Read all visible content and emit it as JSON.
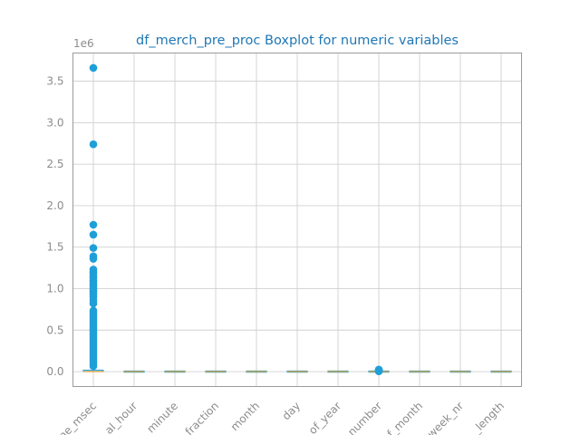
{
  "chart_data": {
    "type": "boxplot",
    "title": "df_merch_pre_proc Boxplot for numeric variables",
    "y_offset_label": "1e6",
    "ylim": [
      -0.18,
      3.84
    ],
    "y_ticks": [
      0.0,
      0.5,
      1.0,
      1.5,
      2.0,
      2.5,
      3.0,
      3.5
    ],
    "y_tick_labels": [
      "0.0",
      "0.5",
      "1.0",
      "1.5",
      "2.0",
      "2.5",
      "3.0",
      "3.5"
    ],
    "categories": [
      "time_msec",
      "hour",
      "minute",
      "fraction",
      "month",
      "day",
      "of_year",
      "number",
      "of_month",
      "week_nr",
      "length"
    ],
    "category_tick_labels": [
      "ne_msec",
      "al_hour",
      "_minute",
      "_fraction",
      "month",
      "day",
      "of_year",
      "number",
      "f_month",
      "week_nr",
      "_length"
    ],
    "box_color": "#1f9fd8",
    "median_color": "#e8a23a",
    "grid": true,
    "series": [
      {
        "category": "time_msec",
        "q1": 0.0,
        "median": 0.0,
        "q3": 0.01,
        "whisker_low": 0.0,
        "whisker_high": 0.02,
        "outliers_dense_range": [
          0.02,
          0.78
        ],
        "outliers": [
          0.82,
          0.86,
          0.9,
          0.93,
          0.96,
          0.98,
          1.0,
          1.03,
          1.05,
          1.08,
          1.1,
          1.13,
          1.15,
          1.18,
          1.2,
          1.23,
          1.36,
          1.39,
          1.49,
          1.65,
          1.77,
          2.74,
          3.66
        ]
      },
      {
        "category": "hour",
        "q1": 0.0,
        "median": 0.0,
        "q3": 0.0,
        "whisker_low": 0.0,
        "whisker_high": 0.0,
        "outliers": []
      },
      {
        "category": "minute",
        "q1": 0.0,
        "median": 0.0,
        "q3": 0.0,
        "whisker_low": 0.0,
        "whisker_high": 0.0,
        "outliers": []
      },
      {
        "category": "fraction",
        "q1": 0.0,
        "median": 0.0,
        "q3": 0.0,
        "whisker_low": 0.0,
        "whisker_high": 0.0,
        "outliers": []
      },
      {
        "category": "month",
        "q1": 0.0,
        "median": 0.0,
        "q3": 0.0,
        "whisker_low": 0.0,
        "whisker_high": 0.0,
        "outliers": []
      },
      {
        "category": "day",
        "q1": 0.0,
        "median": 0.0,
        "q3": 0.0,
        "whisker_low": 0.0,
        "whisker_high": 0.0,
        "outliers": []
      },
      {
        "category": "of_year",
        "q1": 0.0,
        "median": 0.0,
        "q3": 0.0,
        "whisker_low": 0.0,
        "whisker_high": 0.0,
        "outliers": []
      },
      {
        "category": "number",
        "q1": 0.0,
        "median": 0.0,
        "q3": 0.0,
        "whisker_low": 0.0,
        "whisker_high": 0.0,
        "outliers": [
          0.004,
          0.008,
          0.012,
          0.016,
          0.02,
          0.024
        ]
      },
      {
        "category": "of_month",
        "q1": 0.0,
        "median": 0.0,
        "q3": 0.0,
        "whisker_low": 0.0,
        "whisker_high": 0.0,
        "outliers": []
      },
      {
        "category": "week_nr",
        "q1": 0.0,
        "median": 0.0,
        "q3": 0.0,
        "whisker_low": 0.0,
        "whisker_high": 0.0,
        "outliers": []
      },
      {
        "category": "length",
        "q1": 0.0,
        "median": 0.0,
        "q3": 0.0,
        "whisker_low": 0.0,
        "whisker_high": 0.0,
        "outliers": []
      }
    ]
  }
}
